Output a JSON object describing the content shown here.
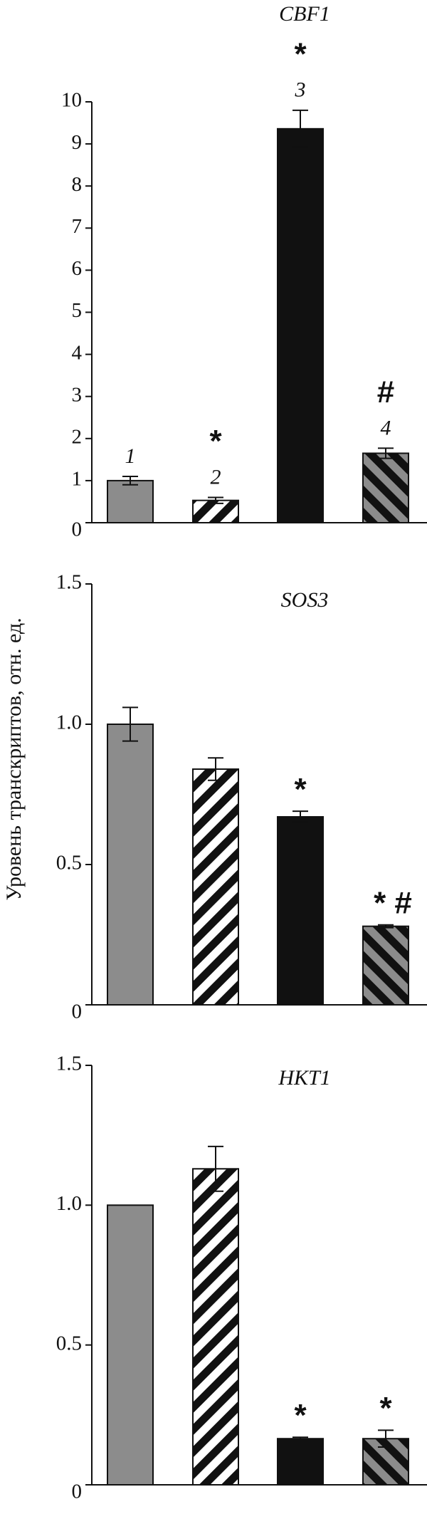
{
  "chart_data": [
    {
      "type": "bar",
      "title": "CBF1",
      "categories": [
        null,
        null,
        null,
        null
      ],
      "values": [
        1.0,
        0.53,
        9.36,
        1.65
      ],
      "errors": [
        0.1,
        0.07,
        0.44,
        0.12
      ],
      "bar_labels": [
        "1",
        "2",
        "3",
        "4"
      ],
      "annotations": [
        null,
        "*",
        "*",
        "#"
      ],
      "colors": [
        "#8c8c8c",
        "#ffffff",
        "#111111",
        "#8c8c8c"
      ],
      "patterns": [
        "solid",
        "hatch-right",
        "solid",
        "hatch-left"
      ],
      "ylim": [
        0,
        10
      ],
      "yticks": [
        0,
        1,
        2,
        3,
        4,
        5,
        6,
        7,
        8,
        9,
        10
      ]
    },
    {
      "type": "bar",
      "title": "SOS3",
      "ylabel": "Уровень транскриптов, отн. ед.",
      "categories": [
        null,
        null,
        null,
        null
      ],
      "values": [
        1.0,
        0.84,
        0.67,
        0.28
      ],
      "errors": [
        0.06,
        0.04,
        0.02,
        0.005
      ],
      "annotations": [
        null,
        null,
        "*",
        "* #"
      ],
      "colors": [
        "#8c8c8c",
        "#ffffff",
        "#111111",
        "#8c8c8c"
      ],
      "patterns": [
        "solid",
        "hatch-right",
        "solid",
        "hatch-left"
      ],
      "ylim": [
        0,
        1.5
      ],
      "yticks": [
        0,
        0.5,
        {
          "value": 1,
          "label": "1.0"
        },
        1.5
      ]
    },
    {
      "type": "bar",
      "title": "HKT1",
      "categories": [
        null,
        null,
        null,
        null
      ],
      "values": [
        1.0,
        1.13,
        0.165,
        0.165
      ],
      "errors": [
        null,
        0.08,
        0.005,
        0.03
      ],
      "annotations": [
        null,
        null,
        "*",
        "*"
      ],
      "colors": [
        "#8c8c8c",
        "#ffffff",
        "#111111",
        "#8c8c8c"
      ],
      "patterns": [
        "solid",
        "hatch-right",
        "solid",
        "hatch-left"
      ],
      "ylim": [
        0,
        1.5
      ],
      "yticks": [
        0,
        0.5,
        {
          "value": 1,
          "label": "1.0"
        },
        1.5
      ]
    }
  ]
}
